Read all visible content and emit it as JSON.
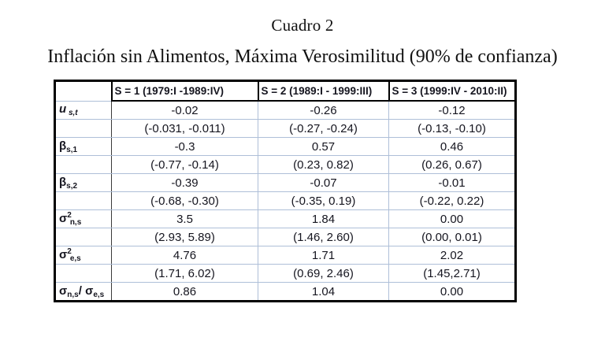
{
  "page": {
    "title": "Cuadro 2",
    "subtitle": "Inflación sin Alimentos, Máxima Verosimilitud (90% de confianza)"
  },
  "chart_data": {
    "type": "table",
    "title": "Cuadro 2",
    "subtitle": "Inflación sin Alimentos, Máxima Verosimilitud (90% de confianza)",
    "confidence_level": "90%",
    "columns": [
      "",
      "S = 1 (1979:I -1989:IV)",
      "S = 2 (1989:I - 1999:III)",
      "S = 3 (1999:IV - 2010:II)"
    ],
    "rows": [
      {
        "label": [
          {
            "t": "u",
            "s": "base-italic"
          },
          {
            "t": " s,t",
            "s": "sub-italic"
          }
        ],
        "label_plain": "u_{s,t}",
        "values": [
          "-0.02",
          "-0.26",
          "-0.12"
        ]
      },
      {
        "label": [],
        "label_plain": "",
        "values": [
          "(-0.031, -0.011)",
          "(-0.27, -0.24)",
          "(-0.13, -0.10)"
        ]
      },
      {
        "label": [
          {
            "t": "β",
            "s": "base"
          },
          {
            "t": "s,1",
            "s": "sub"
          }
        ],
        "label_plain": "beta_{s,1}",
        "values": [
          "-0.3",
          "0.57",
          "0.46"
        ]
      },
      {
        "label": [],
        "label_plain": "",
        "values": [
          "(-0.77, -0.14)",
          "(0.23, 0.82)",
          "(0.26, 0.67)"
        ]
      },
      {
        "label": [
          {
            "t": "β",
            "s": "base"
          },
          {
            "t": "s,2",
            "s": "sub"
          }
        ],
        "label_plain": "beta_{s,2}",
        "values": [
          "-0.39",
          "-0.07",
          "-0.01"
        ]
      },
      {
        "label": [],
        "label_plain": "",
        "values": [
          "(-0.68, -0.30)",
          "(-0.35, 0.19)",
          "(-0.22, 0.22)"
        ]
      },
      {
        "label": [
          {
            "t": "σ",
            "s": "base"
          },
          {
            "t": "2",
            "s": "sup"
          },
          {
            "t": "n,s",
            "s": "sub"
          }
        ],
        "label_plain": "sigma2_{n,s}",
        "values": [
          "3.5",
          "1.84",
          "0.00"
        ]
      },
      {
        "label": [],
        "label_plain": "",
        "values": [
          "(2.93, 5.89)",
          "(1.46, 2.60)",
          "(0.00, 0.01)"
        ]
      },
      {
        "label": [
          {
            "t": "σ",
            "s": "base"
          },
          {
            "t": "2",
            "s": "sup"
          },
          {
            "t": "e,s",
            "s": "sub"
          }
        ],
        "label_plain": "sigma2_{e,s}",
        "values": [
          "4.76",
          "1.71",
          "2.02"
        ]
      },
      {
        "label": [],
        "label_plain": "",
        "values": [
          "(1.71, 6.02)",
          "(0.69, 2.46)",
          "(1.45,2.71)"
        ]
      },
      {
        "label": [
          {
            "t": "σ",
            "s": "base"
          },
          {
            "t": "n,s",
            "s": "sub"
          },
          {
            "t": "/ ",
            "s": "base"
          },
          {
            "t": "σ",
            "s": "base"
          },
          {
            "t": "e,s",
            "s": "sub"
          }
        ],
        "label_plain": "sigma_{n,s}/sigma_{e,s}",
        "values": [
          "0.86",
          "1.04",
          "0.00"
        ]
      }
    ]
  },
  "colors": {
    "grid_line": "#aebfd8",
    "table_border": "#000000",
    "text": "#15151f"
  }
}
